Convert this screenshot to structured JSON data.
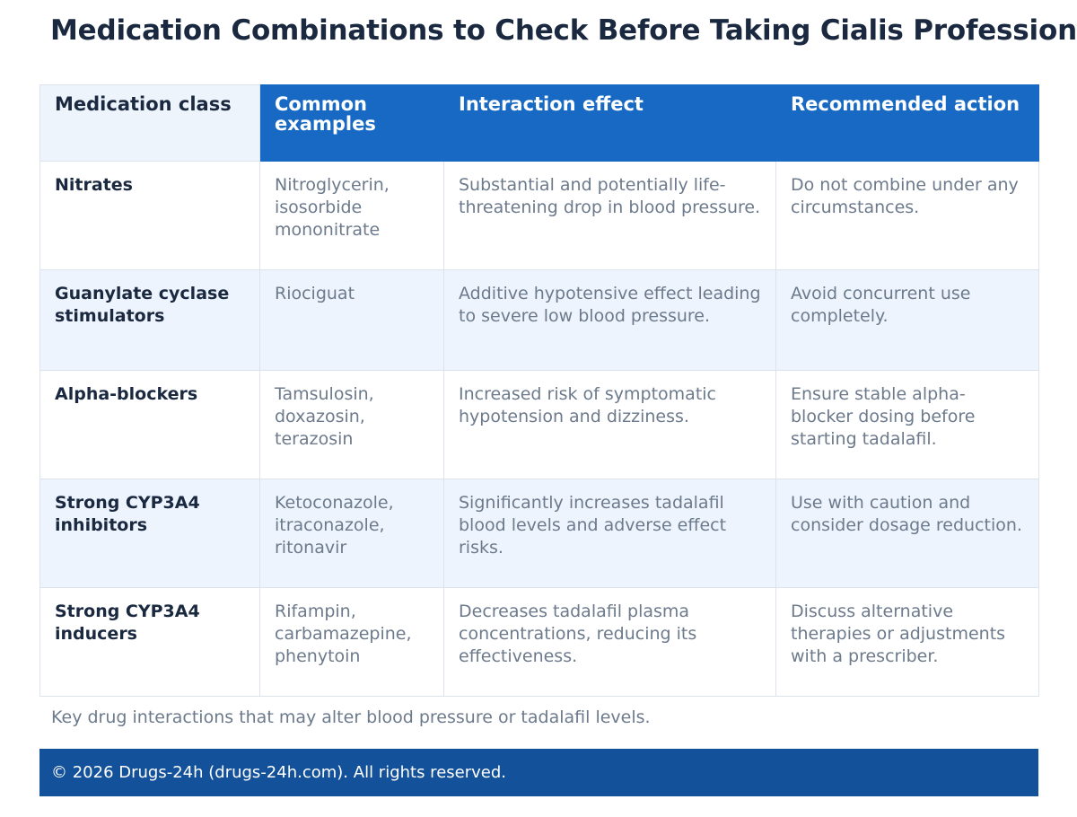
{
  "title": "Medication Combinations to Check Before Taking Cialis Professional",
  "table": {
    "headers": [
      "Medication class",
      "Common examples",
      "Interaction effect",
      "Recommended action"
    ],
    "rows": [
      {
        "class": "Nitrates",
        "examples": "Nitroglycerin, isosorbide mononitrate",
        "effect": "Substantial and potentially life-threatening drop in blood pressure.",
        "action": "Do not combine under any circumstances."
      },
      {
        "class": "Guanylate cyclase stimulators",
        "examples": "Riociguat",
        "effect": "Additive hypotensive effect leading to severe low blood pressure.",
        "action": "Avoid concurrent use completely."
      },
      {
        "class": "Alpha-blockers",
        "examples": "Tamsulosin, doxazosin, terazosin",
        "effect": "Increased risk of symptomatic hypotension and dizziness.",
        "action": "Ensure stable alpha-blocker dosing before starting tadalafil."
      },
      {
        "class": "Strong CYP3A4 inhibitors",
        "examples": "Ketoconazole, itraconazole, ritonavir",
        "effect": "Significantly increases tadalafil blood levels and adverse effect risks.",
        "action": "Use with caution and consider dosage reduction."
      },
      {
        "class": "Strong CYP3A4 inducers",
        "examples": "Rifampin, carbamazepine, phenytoin",
        "effect": "Decreases tadalafil plasma concentrations, reducing its effectiveness.",
        "action": "Discuss alternative therapies or adjustments with a prescriber."
      }
    ]
  },
  "caption": "Key drug interactions that may alter blood pressure or tadalafil levels.",
  "footer": "© 2026 Drugs-24h (drugs-24h.com). All rights reserved.",
  "colors": {
    "header_bg": "#1869c4",
    "stripe_bg": "#edf4fd",
    "footer_bg": "#13529a",
    "title_text": "#1a2940",
    "body_text": "#6c7a8c"
  }
}
